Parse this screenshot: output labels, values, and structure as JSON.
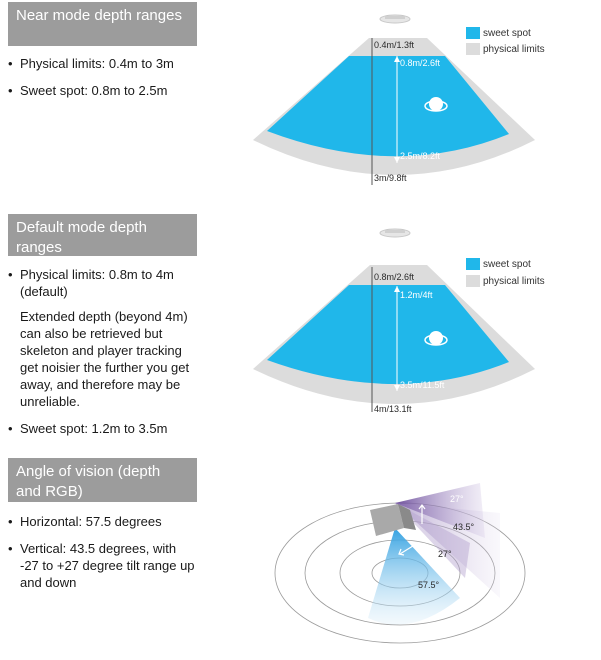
{
  "colors": {
    "sweet_spot": "#20b7ea",
    "physical_limits": "#dcdcdc",
    "header_bg": "#9c9c9c",
    "vertical_fov": "#7d5ba6"
  },
  "sections": [
    {
      "title": "Near mode depth ranges",
      "bullets": [
        {
          "text": "Physical limits: 0.4m to 3m"
        },
        {
          "text": "Sweet spot: 0.8m to 2.5m"
        }
      ],
      "labels": {
        "min_physical": "0.4m/1.3ft",
        "min_sweet": "0.8m/2.6ft",
        "max_sweet": "2.5m/8.2ft",
        "max_physical": "3m/9.8ft"
      },
      "legend": {
        "sweet_spot": "sweet spot",
        "physical_limits": "physical limits"
      },
      "icons": [
        "kinect-sensor-icon",
        "person-head-icon"
      ]
    },
    {
      "title": "Default mode depth ranges",
      "bullets": [
        {
          "text": "Physical limits: 0.8m to 4m (default)",
          "note": "Extended depth (beyond 4m) can also be retrieved but skeleton and player tracking get noisier the further you get away, and therefore may be unreliable."
        },
        {
          "text": "Sweet spot: 1.2m to 3.5m"
        }
      ],
      "labels": {
        "min_physical": "0.8m/2.6ft",
        "min_sweet": "1.2m/4ft",
        "max_sweet": "3.5m/11.5ft",
        "max_physical": "4m/13.1ft"
      },
      "legend": {
        "sweet_spot": "sweet spot",
        "physical_limits": "physical limits"
      },
      "icons": [
        "kinect-sensor-icon",
        "person-head-icon"
      ]
    },
    {
      "title": "Angle of vision (depth and RGB)",
      "bullets": [
        {
          "text": "Horizontal: 57.5 degrees"
        },
        {
          "text": "Vertical: 43.5 degrees, with -27 to +27 degree tilt range up and down"
        }
      ],
      "angles": {
        "tilt_up": "27°",
        "vertical": "43.5°",
        "tilt_down": "27°",
        "horizontal": "57.5°"
      },
      "icons": [
        "kinect-sensor-icon",
        "tilt-arrows-icon"
      ]
    }
  ]
}
